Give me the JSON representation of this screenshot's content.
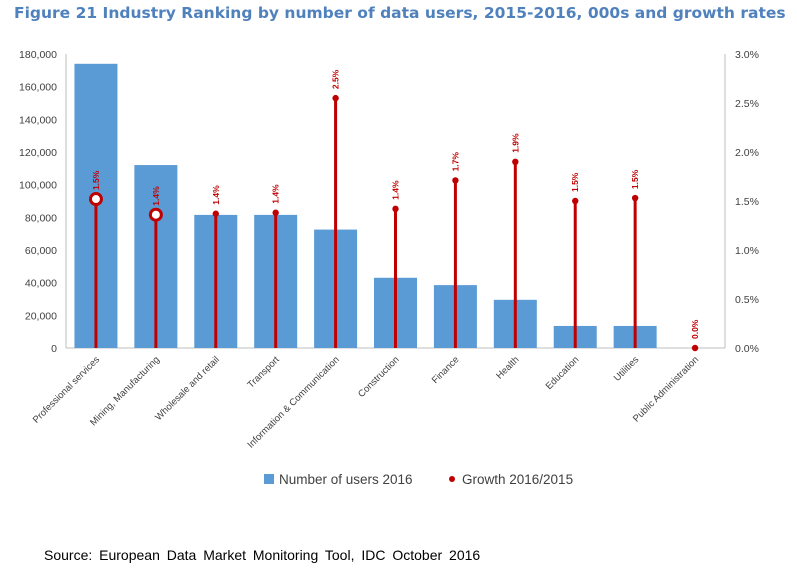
{
  "title": "Figure 21 Industry Ranking by number of data users, 2015-2016, 000s and growth rates",
  "source": "Source:  European  Data  Market  Monitoring  Tool,  IDC  October  2016",
  "colors": {
    "bars": "#5B9BD5",
    "growth": "#C00000",
    "title": "#4F81BD"
  },
  "chart_data": {
    "type": "bar",
    "title": "Figure 21 Industry Ranking by number of data users, 2015-2016, 000s and growth rates",
    "categories": [
      "Professional services",
      "Mining, Manufacturing",
      "Wholesale and retail",
      "Transport",
      "Information & Communication",
      "Construction",
      "Finance",
      "Health",
      "Education",
      "Utilities",
      "Public Administration"
    ],
    "series": [
      {
        "name": "Number of users 2016",
        "type": "bar",
        "axis": "left",
        "values": [
          174000,
          112000,
          81500,
          81500,
          72500,
          43000,
          38500,
          29500,
          13500,
          13500,
          0
        ]
      },
      {
        "name": "Growth 2016/2015",
        "type": "lollipop",
        "axis": "right",
        "values": [
          1.5,
          1.4,
          1.4,
          1.4,
          2.5,
          1.4,
          1.7,
          1.9,
          1.5,
          1.5,
          0.0
        ],
        "point_values": [
          1.52,
          1.36,
          1.37,
          1.38,
          2.55,
          1.42,
          1.71,
          1.9,
          1.5,
          1.53,
          0.0
        ],
        "labels": [
          "1.5%",
          "1.4%",
          "1.4%",
          "1.4%",
          "2.5%",
          "1.4%",
          "1.7%",
          "1.9%",
          "1.5%",
          "1.5%",
          "0.0%"
        ]
      }
    ],
    "y_left": {
      "ylim": [
        0,
        180000
      ],
      "ticks": [
        "0",
        "20,000",
        "40,000",
        "60,000",
        "80,000",
        "100,000",
        "120,000",
        "140,000",
        "160,000",
        "180,000"
      ]
    },
    "y_right": {
      "ylim": [
        0,
        3.0
      ],
      "ticks": [
        "0.0%",
        "0.5%",
        "1.0%",
        "1.5%",
        "2.0%",
        "2.5%",
        "3.0%"
      ]
    },
    "highlighted_points": [
      0,
      1
    ],
    "legend": {
      "position": "bottom"
    },
    "grid": false
  }
}
